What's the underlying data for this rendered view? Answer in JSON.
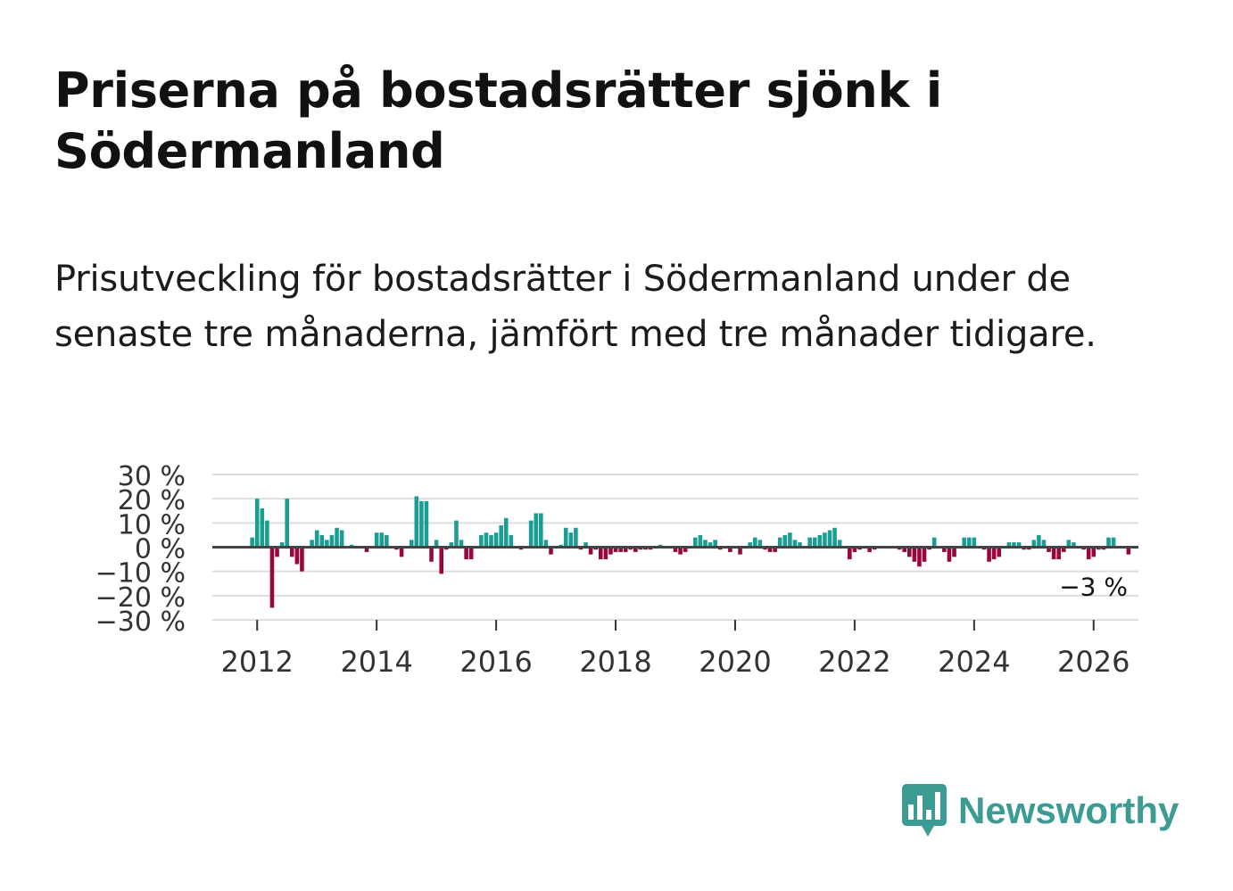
{
  "header": {
    "title": "Priserna på bostadsrätter sjönk i Södermanland",
    "subtitle": "Prisutveckling för bostadsrätter i Södermanland under de senaste tre månaderna, jämfört med tre månader tidigare."
  },
  "logo": {
    "icon": "newsworthy-chart-bubble-icon",
    "text": "Newsworthy"
  },
  "colors": {
    "positive": "#1a9e92",
    "negative": "#98063d",
    "grid": "#dddddd",
    "zero_line": "#444444",
    "brand": "#3c9b93"
  },
  "chart_data": {
    "type": "bar",
    "title": "",
    "xlabel": "",
    "ylabel": "",
    "ylim": [
      -30,
      30
    ],
    "yticks": [
      30,
      20,
      10,
      0,
      -10,
      -20,
      -30
    ],
    "ytick_labels": [
      "30 %",
      "20 %",
      "10 %",
      "0 %",
      "−10 %",
      "−20 %",
      "−30 %"
    ],
    "xticks": [
      2012,
      2014,
      2016,
      2018,
      2020,
      2022,
      2024,
      2026
    ],
    "xtick_labels": [
      "2012",
      "2014",
      "2016",
      "2018",
      "2020",
      "2022",
      "2024",
      "2026"
    ],
    "x_start": "2011-04",
    "x_end": "2026-10",
    "series": [
      {
        "name": "Prisutveckling",
        "start": "2011-12",
        "values": [
          4,
          20,
          16,
          11,
          -25,
          -4,
          2,
          20,
          -4,
          -7,
          -10,
          0,
          3,
          7,
          5,
          3,
          5,
          8,
          7,
          0,
          1,
          0,
          0,
          -2,
          0,
          6,
          6,
          5,
          0,
          -1,
          -4,
          0,
          3,
          21,
          19,
          19,
          -6,
          3,
          -11,
          -1,
          2,
          11,
          3,
          -5,
          -5,
          0,
          5,
          6,
          5,
          6,
          9,
          12,
          5,
          0,
          -1,
          0,
          11,
          14,
          14,
          3,
          -3,
          0,
          1,
          8,
          6,
          8,
          -1,
          2,
          -3,
          -1,
          -5,
          -5,
          -3,
          -2,
          -2,
          -2,
          -1,
          -2,
          -1,
          -1,
          -1,
          0,
          1,
          0,
          0,
          -2,
          -3,
          -2,
          0,
          4,
          5,
          3,
          2,
          3,
          -1,
          0,
          -2,
          0,
          -3,
          0,
          2,
          4,
          3,
          -1,
          -2,
          -2,
          4,
          5,
          6,
          3,
          2,
          0,
          4,
          4,
          5,
          6,
          7,
          8,
          3,
          0,
          -5,
          -2,
          -1,
          0,
          -2,
          -1,
          0,
          0,
          0,
          0,
          -1,
          -2,
          -4,
          -6,
          -8,
          -6,
          -1,
          4,
          0,
          -2,
          -6,
          -4,
          0,
          4,
          4,
          4,
          0,
          -1,
          -6,
          -5,
          -4,
          0,
          2,
          2,
          2,
          -1,
          -1,
          3,
          5,
          3,
          -2,
          -5,
          -5,
          -2,
          3,
          2,
          0,
          -1,
          -5,
          -4,
          -1,
          -1,
          4,
          4,
          0,
          0,
          -3
        ],
        "last_label": "−3 %"
      }
    ]
  }
}
